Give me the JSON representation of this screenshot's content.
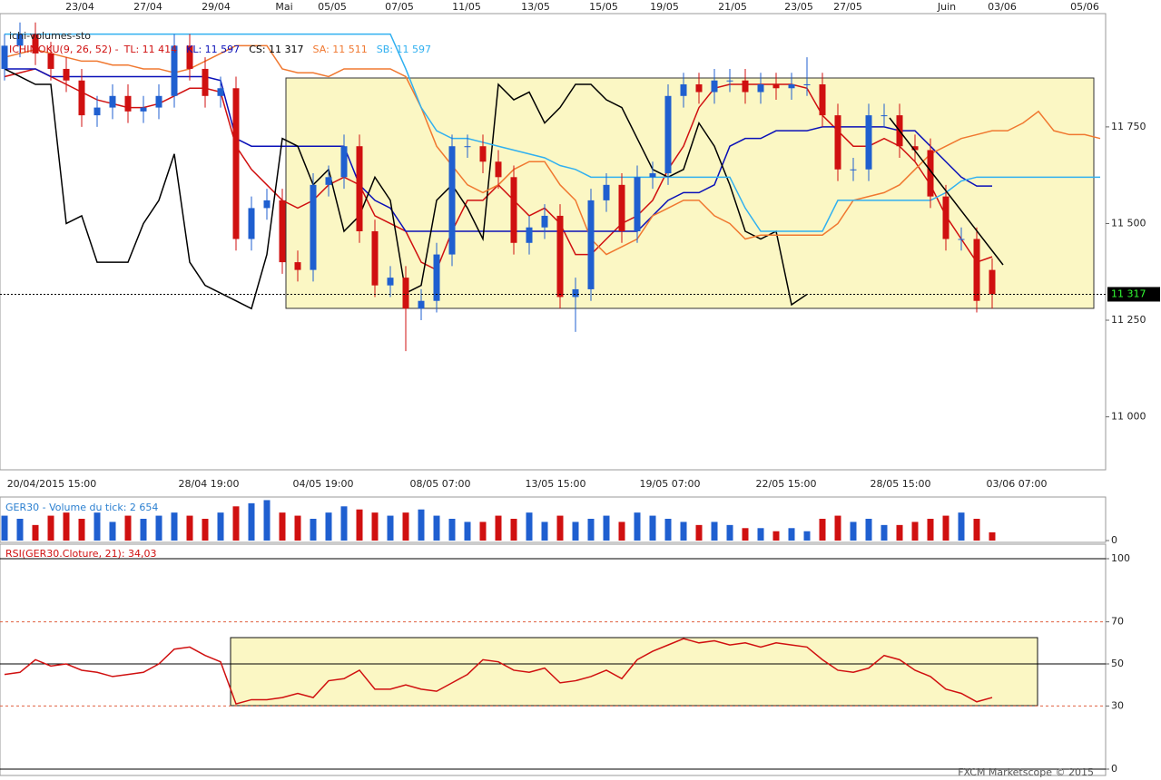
{
  "chart_data": [
    {
      "type": "candlestick",
      "title": "ichi-volumes-sto",
      "legend_prefix": "ICHIMOKU(9, 26, 52) -",
      "ylim": [
        10863,
        12043
      ],
      "yticks": [
        {
          "value": 11000,
          "label": "11 000"
        },
        {
          "value": 11250,
          "label": "11 250"
        },
        {
          "value": 11500,
          "label": "11 500"
        },
        {
          "value": 11750,
          "label": "11 750"
        }
      ],
      "last_price_label": "11 317",
      "top_dates": [
        "23/04",
        "27/04",
        "29/04",
        "Mai",
        "05/05",
        "07/05",
        "11/05",
        "13/05",
        "15/05",
        "19/05",
        "21/05",
        "23/05",
        "27/05",
        "Juin",
        "03/06",
        "05/06"
      ],
      "x_labels": [
        "20/04/2015 15:00",
        "28/04 19:00",
        "04/05 19:00",
        "08/05 07:00",
        "13/05 15:00",
        "19/05 07:00",
        "22/05 15:00",
        "28/05 15:00",
        "03/06 07:00"
      ],
      "up_color": "#1f5fd0",
      "down_color": "#d01010",
      "open": [
        11900,
        11960,
        11990,
        11940,
        11900,
        11870,
        11780,
        11800,
        11830,
        11790,
        11800,
        11830,
        11960,
        11900,
        11830,
        11850,
        11460,
        11540,
        11560,
        11400,
        11380,
        11600,
        11620,
        11700,
        11480,
        11340,
        11360,
        11280,
        11300,
        11420,
        11700,
        11700,
        11660,
        11620,
        11450,
        11490,
        11520,
        11310,
        11330,
        11560,
        11600,
        11480,
        11620,
        11630,
        11830,
        11860,
        11840,
        11870,
        11870,
        11840,
        11860,
        11850,
        11860,
        11860,
        11780,
        11640,
        11640,
        11780,
        11780,
        11700,
        11690,
        11570,
        11460,
        11460,
        11380
      ],
      "high": [
        11990,
        12020,
        12020,
        11970,
        11930,
        11900,
        11830,
        11860,
        11860,
        11830,
        11860,
        11990,
        11990,
        11930,
        11880,
        11880,
        11570,
        11590,
        11590,
        11430,
        11630,
        11650,
        11730,
        11730,
        11510,
        11390,
        11390,
        11330,
        11450,
        11730,
        11730,
        11730,
        11690,
        11650,
        11520,
        11550,
        11550,
        11360,
        11590,
        11630,
        11630,
        11650,
        11660,
        11860,
        11890,
        11890,
        11900,
        11900,
        11900,
        11890,
        11890,
        11890,
        11930,
        11890,
        11810,
        11670,
        11810,
        11810,
        11810,
        11730,
        11720,
        11600,
        11490,
        11490,
        11410
      ],
      "low": [
        11870,
        11930,
        11910,
        11870,
        11840,
        11750,
        11750,
        11770,
        11760,
        11760,
        11770,
        11800,
        11870,
        11800,
        11800,
        11430,
        11430,
        11510,
        11370,
        11350,
        11350,
        11570,
        11590,
        11450,
        11310,
        11310,
        11170,
        11250,
        11270,
        11390,
        11670,
        11630,
        11590,
        11420,
        11420,
        11460,
        11280,
        11220,
        11300,
        11530,
        11450,
        11450,
        11590,
        11600,
        11800,
        11810,
        11810,
        11840,
        11810,
        11810,
        11820,
        11820,
        11830,
        11750,
        11610,
        11610,
        11610,
        11750,
        11670,
        11660,
        11540,
        11430,
        11430,
        11270,
        11280
      ],
      "close": [
        11960,
        11990,
        11940,
        11900,
        11870,
        11780,
        11800,
        11830,
        11790,
        11800,
        11830,
        11960,
        11900,
        11830,
        11850,
        11460,
        11540,
        11560,
        11400,
        11380,
        11600,
        11620,
        11700,
        11480,
        11340,
        11360,
        11280,
        11300,
        11420,
        11700,
        11700,
        11660,
        11620,
        11450,
        11490,
        11520,
        11310,
        11330,
        11560,
        11600,
        11480,
        11620,
        11630,
        11830,
        11860,
        11840,
        11870,
        11870,
        11840,
        11860,
        11850,
        11860,
        11860,
        11780,
        11640,
        11640,
        11780,
        11780,
        11700,
        11690,
        11570,
        11460,
        11460,
        11300,
        11317
      ],
      "series": [
        {
          "name": "TL: 11 414",
          "color": "#d01010",
          "values": [
            11880,
            11890,
            11900,
            11880,
            11860,
            11840,
            11820,
            11810,
            11800,
            11800,
            11810,
            11830,
            11850,
            11850,
            11840,
            11700,
            11640,
            11600,
            11560,
            11540,
            11560,
            11600,
            11620,
            11600,
            11520,
            11500,
            11480,
            11400,
            11380,
            11480,
            11560,
            11560,
            11600,
            11560,
            11520,
            11540,
            11500,
            11420,
            11420,
            11460,
            11500,
            11520,
            11560,
            11640,
            11700,
            11800,
            11850,
            11860,
            11860,
            11860,
            11860,
            11860,
            11850,
            11780,
            11740,
            11700,
            11700,
            11720,
            11700,
            11660,
            11600,
            11520,
            11460,
            11400,
            11414
          ]
        },
        {
          "name": "KL: 11 597",
          "color": "#0a10b8",
          "values": [
            11900,
            11900,
            11900,
            11880,
            11880,
            11880,
            11880,
            11880,
            11880,
            11880,
            11880,
            11880,
            11880,
            11880,
            11870,
            11720,
            11700,
            11700,
            11700,
            11700,
            11700,
            11700,
            11700,
            11600,
            11560,
            11540,
            11480,
            11480,
            11480,
            11480,
            11480,
            11480,
            11480,
            11480,
            11480,
            11480,
            11480,
            11480,
            11480,
            11480,
            11480,
            11480,
            11520,
            11560,
            11580,
            11580,
            11600,
            11700,
            11720,
            11720,
            11740,
            11740,
            11740,
            11750,
            11750,
            11750,
            11750,
            11750,
            11740,
            11740,
            11700,
            11660,
            11620,
            11597,
            11597
          ]
        },
        {
          "name": "CS: 11 317",
          "color": "#000000",
          "values": [
            11900,
            11880,
            11860,
            11860,
            11500,
            11520,
            11400,
            11400,
            11400,
            11500,
            11560,
            11680,
            11400,
            11340,
            11320,
            11300,
            11280,
            11420,
            11720,
            11700,
            11600,
            11640,
            11480,
            11520,
            11620,
            11560,
            11320,
            11340,
            11560,
            11600,
            11540,
            11460,
            11860,
            11820,
            11840,
            11760,
            11800,
            11860,
            11860,
            11820,
            11800,
            11720,
            11640,
            11620,
            11640,
            11760,
            11700,
            11600,
            11480,
            11460,
            11480,
            11290,
            11317
          ]
        },
        {
          "name": "SA: 11 511",
          "color": "#f07830",
          "values": [
            11930,
            11940,
            11950,
            11940,
            11930,
            11920,
            11920,
            11910,
            11910,
            11900,
            11900,
            11890,
            11900,
            11920,
            11940,
            11960,
            11960,
            11960,
            11900,
            11890,
            11890,
            11880,
            11900,
            11900,
            11900,
            11900,
            11880,
            11800,
            11700,
            11650,
            11600,
            11580,
            11600,
            11640,
            11660,
            11660,
            11600,
            11560,
            11460,
            11420,
            11440,
            11460,
            11520,
            11540,
            11560,
            11560,
            11520,
            11500,
            11460,
            11470,
            11470,
            11470,
            11470,
            11470,
            11500,
            11560,
            11570,
            11580,
            11600,
            11640,
            11680,
            11700,
            11720,
            11730,
            11740,
            11740,
            11760,
            11790,
            11740,
            11730,
            11730,
            11720
          ]
        },
        {
          "name": "SB: 11 597",
          "color": "#30b0f0",
          "values": [
            11990,
            11990,
            11990,
            11990,
            11990,
            11990,
            11990,
            11990,
            11990,
            11990,
            11990,
            11990,
            11990,
            11990,
            11990,
            11990,
            11990,
            11990,
            11990,
            11990,
            11990,
            11990,
            11990,
            11990,
            11990,
            11990,
            11900,
            11800,
            11740,
            11720,
            11720,
            11710,
            11700,
            11690,
            11680,
            11670,
            11650,
            11640,
            11620,
            11620,
            11620,
            11620,
            11620,
            11620,
            11620,
            11620,
            11620,
            11620,
            11540,
            11480,
            11480,
            11480,
            11480,
            11480,
            11560,
            11560,
            11560,
            11560,
            11560,
            11560,
            11560,
            11580,
            11610,
            11620,
            11620,
            11620,
            11620,
            11620,
            11620,
            11620,
            11620,
            11620
          ]
        }
      ]
    },
    {
      "type": "bar",
      "title": "GER30 - Volume du tick: 2 654",
      "ylim": [
        0,
        14000
      ],
      "yticks": [
        0
      ],
      "values": [
        8000,
        7000,
        5000,
        8000,
        9000,
        7000,
        9000,
        6000,
        8000,
        7000,
        8000,
        9000,
        8000,
        7000,
        9000,
        11000,
        12000,
        13000,
        9000,
        8000,
        7000,
        9000,
        11000,
        10000,
        9000,
        8000,
        9000,
        10000,
        8000,
        7000,
        6000,
        6000,
        8000,
        7000,
        9000,
        6000,
        8000,
        6000,
        7000,
        8000,
        6000,
        9000,
        8000,
        7000,
        6000,
        5000,
        6000,
        5000,
        4000,
        4000,
        3000,
        4000,
        3000,
        7000,
        8000,
        6000,
        7000,
        5000,
        5000,
        6000,
        7000,
        8000,
        9000,
        7000,
        2654
      ]
    },
    {
      "type": "line",
      "title": "RSI(GER30.Cloture, 21): 34,03",
      "color": "#d01010",
      "ylim": [
        0,
        100
      ],
      "yticks": [
        0,
        30,
        50,
        70,
        100
      ],
      "values": [
        45,
        46,
        52,
        49,
        50,
        47,
        46,
        44,
        45,
        46,
        50,
        57,
        58,
        54,
        51,
        31,
        33,
        33,
        34,
        36,
        34,
        42,
        43,
        47,
        38,
        38,
        40,
        38,
        37,
        41,
        45,
        52,
        51,
        47,
        46,
        48,
        41,
        42,
        44,
        47,
        43,
        52,
        56,
        59,
        62,
        60,
        61,
        59,
        60,
        58,
        60,
        59,
        58,
        52,
        47,
        46,
        48,
        54,
        52,
        47,
        44,
        38,
        36,
        32,
        34.03
      ],
      "footer": "FXCM Marketscope © 2015"
    }
  ]
}
